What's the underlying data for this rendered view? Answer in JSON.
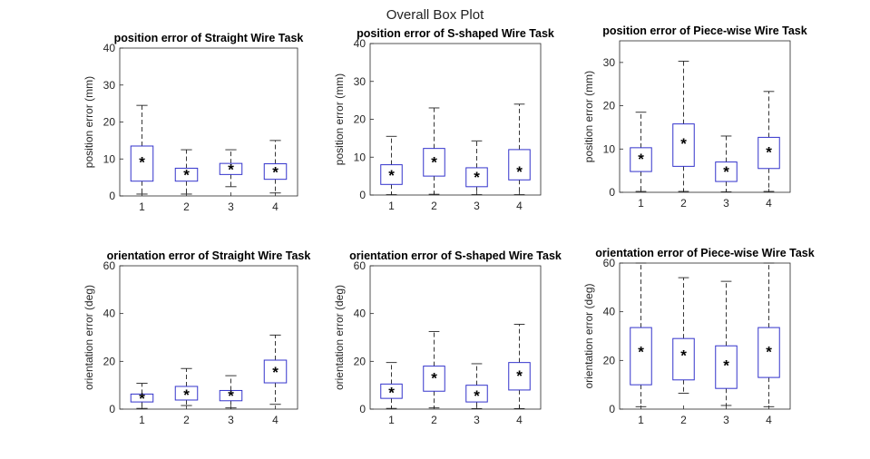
{
  "figure": {
    "suptitle": "Overall Box Plot"
  },
  "colors": {
    "box": "#3333cc",
    "whisker": "#222222",
    "mean": "#000000",
    "axis": "#262626"
  },
  "chart_data": [
    {
      "type": "box",
      "title": "position error of Straight Wire Task",
      "ylabel": "position error (mm)",
      "ylim": [
        0,
        40
      ],
      "yticks": [
        0,
        10,
        20,
        30,
        40
      ],
      "categories": [
        "1",
        "2",
        "3",
        "4"
      ],
      "boxes": [
        {
          "whisker_low": 0.5,
          "q1": 4,
          "q3": 13.5,
          "whisker_high": 24.5,
          "mean": 9.5
        },
        {
          "whisker_low": 0.5,
          "q1": 4,
          "q3": 7.5,
          "whisker_high": 12.5,
          "mean": 6
        },
        {
          "whisker_low": 2.5,
          "q1": 5.8,
          "q3": 8.8,
          "whisker_high": 12.5,
          "mean": 7.5
        },
        {
          "whisker_low": 0.8,
          "q1": 4.5,
          "q3": 8.7,
          "whisker_high": 15,
          "mean": 6.8
        }
      ]
    },
    {
      "type": "box",
      "title": "position error of S-shaped Wire Task",
      "ylabel": "position error (mm)",
      "ylim": [
        0,
        40
      ],
      "yticks": [
        0,
        10,
        20,
        30,
        40
      ],
      "categories": [
        "1",
        "2",
        "3",
        "4"
      ],
      "boxes": [
        {
          "whisker_low": 0.1,
          "q1": 2.8,
          "q3": 8,
          "whisker_high": 15.5,
          "mean": 5.5
        },
        {
          "whisker_low": 0.2,
          "q1": 5,
          "q3": 12.3,
          "whisker_high": 23,
          "mean": 9
        },
        {
          "whisker_low": 0.1,
          "q1": 2.2,
          "q3": 7.2,
          "whisker_high": 14.3,
          "mean": 5
        },
        {
          "whisker_low": 0.1,
          "q1": 4,
          "q3": 12,
          "whisker_high": 24,
          "mean": 6.5
        }
      ]
    },
    {
      "type": "box",
      "title": "position error of Piece-wise Wire Task",
      "ylabel": "position error (mm)",
      "ylim": [
        0,
        35
      ],
      "yticks": [
        0,
        10,
        20,
        30
      ],
      "categories": [
        "1",
        "2",
        "3",
        "4"
      ],
      "boxes": [
        {
          "whisker_low": 0.2,
          "q1": 4.8,
          "q3": 10.3,
          "whisker_high": 18.5,
          "mean": 8
        },
        {
          "whisker_low": 0.2,
          "q1": 6,
          "q3": 15.8,
          "whisker_high": 30.3,
          "mean": 11.5
        },
        {
          "whisker_low": 0.1,
          "q1": 2.5,
          "q3": 7,
          "whisker_high": 13,
          "mean": 5
        },
        {
          "whisker_low": 0.2,
          "q1": 5.5,
          "q3": 12.7,
          "whisker_high": 23.3,
          "mean": 9.5
        }
      ]
    },
    {
      "type": "box",
      "title": "orientation error of Straight Wire Task",
      "ylabel": "orientation error (deg)",
      "ylim": [
        0,
        60
      ],
      "yticks": [
        0,
        20,
        40,
        60
      ],
      "categories": [
        "1",
        "2",
        "3",
        "4"
      ],
      "boxes": [
        {
          "whisker_low": 0.3,
          "q1": 3,
          "q3": 6.3,
          "whisker_high": 10.8,
          "mean": 5
        },
        {
          "whisker_low": 1.5,
          "q1": 3.8,
          "q3": 9.5,
          "whisker_high": 17,
          "mean": 6.5
        },
        {
          "whisker_low": 0.5,
          "q1": 3.5,
          "q3": 7.8,
          "whisker_high": 14,
          "mean": 6
        },
        {
          "whisker_low": 2,
          "q1": 11,
          "q3": 20.5,
          "whisker_high": 31,
          "mean": 16
        }
      ]
    },
    {
      "type": "box",
      "title": "orientation error of S-shaped Wire Task",
      "ylabel": "orientation error (deg)",
      "ylim": [
        0,
        60
      ],
      "yticks": [
        0,
        20,
        40,
        60
      ],
      "categories": [
        "1",
        "2",
        "3",
        "4"
      ],
      "boxes": [
        {
          "whisker_low": 0.3,
          "q1": 4.5,
          "q3": 10.5,
          "whisker_high": 19.5,
          "mean": 7.5
        },
        {
          "whisker_low": 0.5,
          "q1": 7.5,
          "q3": 18,
          "whisker_high": 32.5,
          "mean": 13.5
        },
        {
          "whisker_low": 0.2,
          "q1": 3,
          "q3": 10,
          "whisker_high": 19,
          "mean": 6
        },
        {
          "whisker_low": 0.2,
          "q1": 8,
          "q3": 19.5,
          "whisker_high": 35.5,
          "mean": 14.5
        }
      ]
    },
    {
      "type": "box",
      "title": "orientation error of Piece-wise Wire Task",
      "ylabel": "orientation error (deg)",
      "ylim": [
        0,
        60
      ],
      "yticks": [
        0,
        20,
        40,
        60
      ],
      "categories": [
        "1",
        "2",
        "3",
        "4"
      ],
      "boxes": [
        {
          "whisker_low": 1,
          "q1": 10,
          "q3": 33.5,
          "whisker_high": 60,
          "mean": 24
        },
        {
          "whisker_low": 6.5,
          "q1": 12,
          "q3": 29,
          "whisker_high": 54,
          "mean": 22.5
        },
        {
          "whisker_low": 1.5,
          "q1": 8.5,
          "q3": 26,
          "whisker_high": 52.5,
          "mean": 18.5
        },
        {
          "whisker_low": 1,
          "q1": 13,
          "q3": 33.5,
          "whisker_high": 60,
          "mean": 24
        }
      ]
    }
  ]
}
